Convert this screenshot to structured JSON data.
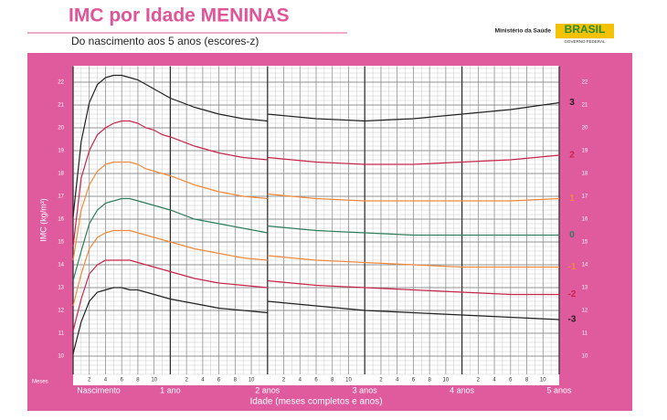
{
  "header": {
    "ministry": "Ministério da Saúde",
    "brand": "BRASIL",
    "government": "GOVERNO FEDERAL"
  },
  "chart_data": {
    "type": "line",
    "title": "IMC por Idade MENINAS",
    "subtitle": "Do nascimento aos 5 anos (escores-z)",
    "y_label": "IMC (kg/m²)",
    "x_label": "Idade (meses completos e anos)",
    "x_unit_label": "Meses",
    "x": [
      0,
      1,
      2,
      3,
      4,
      5,
      6,
      7,
      8,
      9,
      10,
      11,
      12,
      15,
      18,
      21,
      24,
      24,
      24,
      30,
      36,
      42,
      48,
      54,
      60
    ],
    "xlim": [
      0,
      60
    ],
    "xticks": [
      {
        "value": 0,
        "label": "Nascimento"
      },
      {
        "value": 12,
        "label": "1 ano"
      },
      {
        "value": 24,
        "label": "2 anos"
      },
      {
        "value": 36,
        "label": "3 anos"
      },
      {
        "value": 48,
        "label": "4 anos"
      },
      {
        "value": 60,
        "label": "5 anos"
      }
    ],
    "xminor_ticks": [
      {
        "value": 2,
        "label": "2"
      },
      {
        "value": 4,
        "label": "4"
      },
      {
        "value": 6,
        "label": "6"
      },
      {
        "value": 8,
        "label": "8"
      },
      {
        "value": 10,
        "label": "10"
      },
      {
        "value": 14,
        "label": "2"
      },
      {
        "value": 16,
        "label": "4"
      },
      {
        "value": 18,
        "label": "6"
      },
      {
        "value": 20,
        "label": "8"
      },
      {
        "value": 22,
        "label": "10"
      },
      {
        "value": 26,
        "label": "2"
      },
      {
        "value": 28,
        "label": "4"
      },
      {
        "value": 30,
        "label": "6"
      },
      {
        "value": 32,
        "label": "8"
      },
      {
        "value": 34,
        "label": "10"
      },
      {
        "value": 38,
        "label": "2"
      },
      {
        "value": 40,
        "label": "4"
      },
      {
        "value": 42,
        "label": "6"
      },
      {
        "value": 44,
        "label": "8"
      },
      {
        "value": 46,
        "label": "10"
      },
      {
        "value": 50,
        "label": "2"
      },
      {
        "value": 52,
        "label": "4"
      },
      {
        "value": 54,
        "label": "6"
      },
      {
        "value": 56,
        "label": "8"
      },
      {
        "value": 58,
        "label": "10"
      }
    ],
    "ylim": [
      9.2,
      22.7
    ],
    "yticks": [
      10,
      11,
      12,
      13,
      14,
      15,
      16,
      17,
      18,
      19,
      20,
      21,
      22
    ],
    "grid": true,
    "series": [
      {
        "name": "3",
        "color": "#222222",
        "values": [
          16.1,
          19.4,
          21.1,
          21.9,
          22.2,
          22.3,
          22.3,
          22.2,
          22.1,
          21.9,
          21.7,
          21.5,
          21.3,
          20.9,
          20.6,
          20.4,
          20.3,
          null,
          20.6,
          20.4,
          20.3,
          20.4,
          20.6,
          20.8,
          21.1
        ]
      },
      {
        "name": "2",
        "color": "#c8254a",
        "values": [
          14.8,
          17.8,
          19.0,
          19.7,
          20.0,
          20.2,
          20.3,
          20.3,
          20.2,
          20.0,
          19.9,
          19.7,
          19.6,
          19.2,
          18.9,
          18.7,
          18.6,
          null,
          18.7,
          18.5,
          18.4,
          18.4,
          18.5,
          18.6,
          18.8
        ]
      },
      {
        "name": "1",
        "color": "#f08a3a",
        "values": [
          14.2,
          16.4,
          17.5,
          18.1,
          18.4,
          18.5,
          18.5,
          18.5,
          18.4,
          18.2,
          18.1,
          18.0,
          17.9,
          17.5,
          17.2,
          17.0,
          16.9,
          null,
          17.1,
          16.9,
          16.8,
          16.8,
          16.8,
          16.8,
          16.9
        ]
      },
      {
        "name": "0",
        "color": "#2e7d5b",
        "values": [
          13.3,
          14.6,
          15.8,
          16.4,
          16.7,
          16.8,
          16.9,
          16.9,
          16.8,
          16.7,
          16.6,
          16.5,
          16.4,
          16.0,
          15.8,
          15.6,
          15.4,
          null,
          15.7,
          15.5,
          15.4,
          15.3,
          15.3,
          15.3,
          15.3
        ]
      },
      {
        "name": "-1",
        "color": "#f08a3a",
        "values": [
          12.2,
          13.6,
          14.7,
          15.2,
          15.4,
          15.5,
          15.5,
          15.5,
          15.4,
          15.3,
          15.2,
          15.1,
          15.0,
          14.7,
          14.5,
          14.3,
          14.2,
          null,
          14.4,
          14.2,
          14.1,
          14.0,
          13.9,
          13.9,
          13.9
        ]
      },
      {
        "name": "-2",
        "color": "#c8254a",
        "values": [
          11.1,
          12.5,
          13.6,
          14.0,
          14.2,
          14.2,
          14.2,
          14.2,
          14.1,
          14.0,
          13.9,
          13.8,
          13.7,
          13.4,
          13.2,
          13.1,
          13.0,
          null,
          13.3,
          13.1,
          13.0,
          12.9,
          12.8,
          12.7,
          12.7
        ]
      },
      {
        "name": "-3",
        "color": "#222222",
        "values": [
          10.1,
          11.5,
          12.4,
          12.8,
          12.9,
          13.0,
          13.0,
          12.9,
          12.9,
          12.8,
          12.7,
          12.6,
          12.5,
          12.3,
          12.1,
          12.0,
          11.9,
          null,
          12.4,
          12.2,
          12.0,
          11.9,
          11.8,
          11.7,
          11.6
        ]
      }
    ]
  }
}
